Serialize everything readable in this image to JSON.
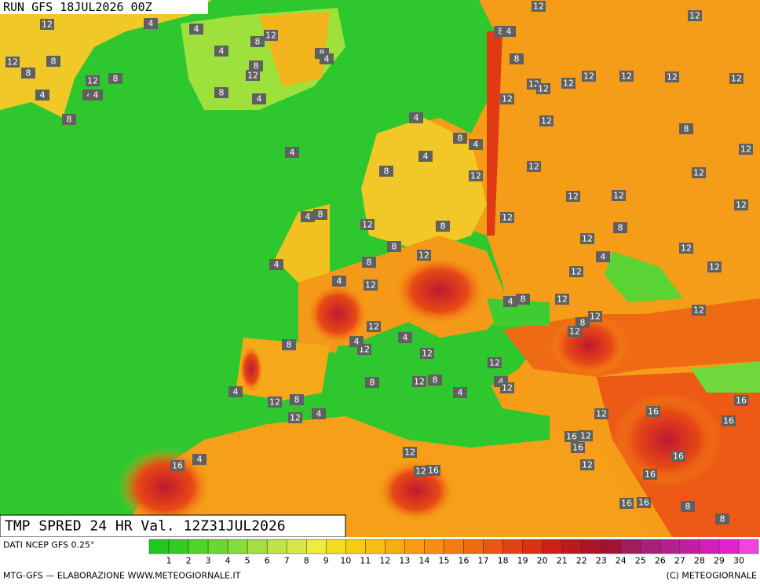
{
  "header": {
    "run": "RUN GFS 18JUL2026 00Z"
  },
  "title": "TMP SPRED 24 HR Val. 12Z31JUL2026",
  "source": "DATI NCEP GFS 0.25°",
  "footer_left": "MTG-GFS — ELABORAZIONE WWW.METEOGIORNALE.IT",
  "footer_right": "(C) METEOGIORNALE",
  "colorbar": {
    "labels": [
      1,
      2,
      3,
      4,
      5,
      6,
      7,
      8,
      9,
      10,
      11,
      12,
      13,
      14,
      15,
      16,
      17,
      18,
      19,
      20,
      21,
      22,
      23,
      24,
      25,
      26,
      27,
      28,
      29,
      30
    ],
    "colors": [
      "#1fc81f",
      "#33cc22",
      "#4fd42a",
      "#6bd832",
      "#86dc3a",
      "#a2e03f",
      "#bde444",
      "#d8e848",
      "#f0ec3c",
      "#f5dc1e",
      "#f8cc14",
      "#f8bc14",
      "#f8ac14",
      "#f89c14",
      "#f88c14",
      "#f47c14",
      "#f06a14",
      "#ec5514",
      "#e44214",
      "#dc3014",
      "#cc2018",
      "#bc1820",
      "#ac1428",
      "#a01432",
      "#a01c5a",
      "#a82078",
      "#b4208c",
      "#c020a0",
      "#d020b8",
      "#e024cc",
      "#f044e0"
    ]
  },
  "map_labels": [
    12,
    12,
    4,
    4,
    12,
    8,
    4,
    8,
    12,
    12,
    8,
    8,
    12,
    8,
    12,
    8,
    8,
    4,
    4,
    4,
    4,
    8,
    8,
    4,
    4,
    8,
    12,
    12,
    12,
    12,
    12,
    12,
    12,
    12,
    12,
    4,
    8,
    4,
    8,
    12,
    4,
    4,
    8,
    12,
    12,
    12,
    12,
    12,
    12,
    4,
    8,
    12,
    8,
    12,
    8,
    12,
    8,
    12,
    12,
    4,
    8,
    4,
    12,
    12,
    4,
    12,
    4,
    8,
    12,
    12,
    12,
    12,
    12,
    4,
    12,
    4,
    8,
    12,
    8,
    12,
    12,
    4,
    12,
    8,
    8,
    4,
    4,
    12,
    8,
    12,
    4,
    12,
    16,
    16,
    16,
    16,
    12,
    16,
    12,
    4,
    16,
    12,
    16,
    12,
    16,
    16,
    16,
    16,
    8,
    8,
    12
  ]
}
